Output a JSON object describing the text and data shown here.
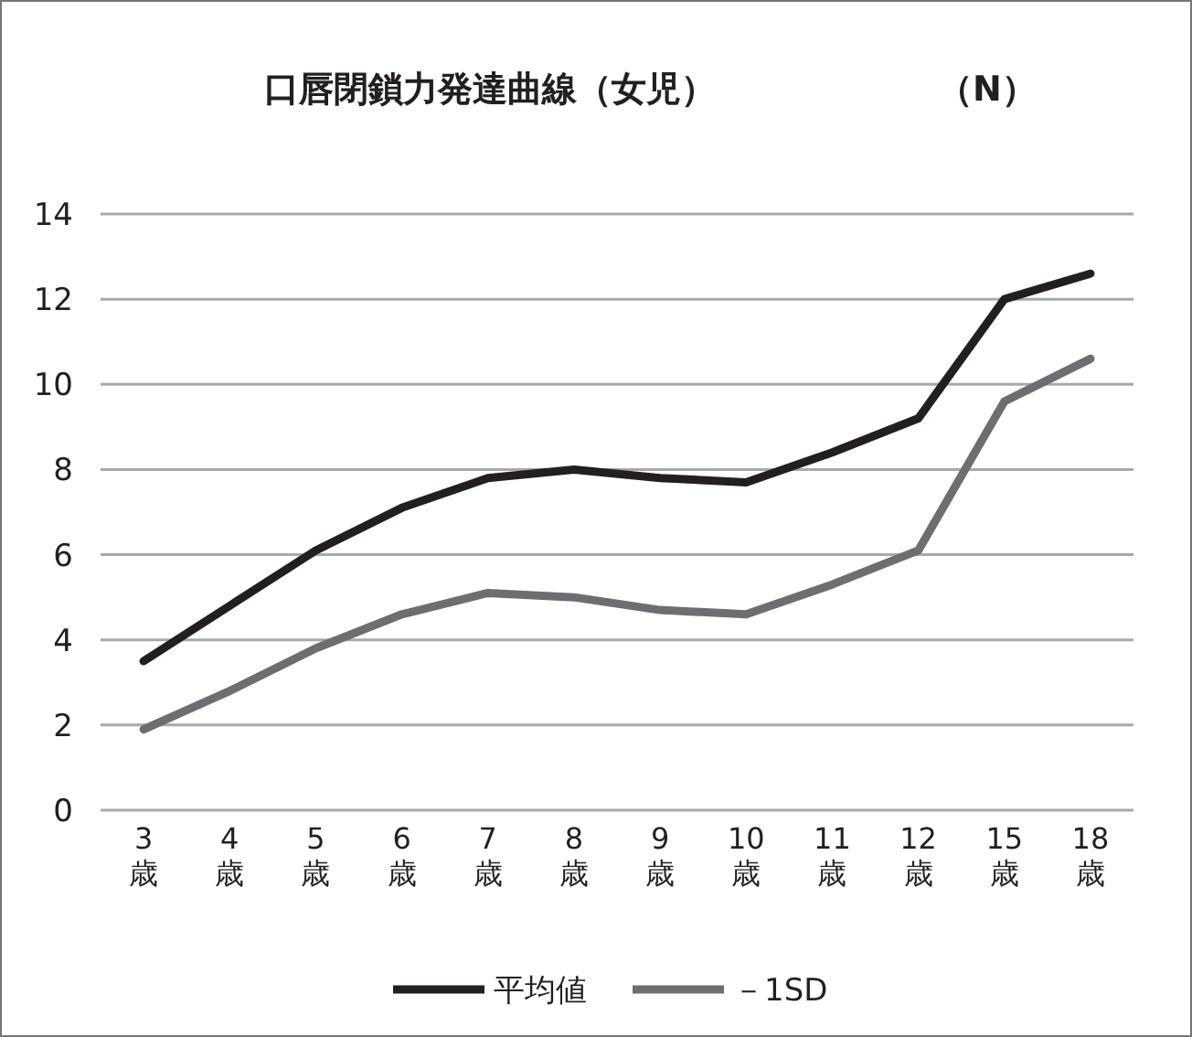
{
  "chart_data": {
    "type": "line",
    "title": "口唇閉鎖力発達曲線（女児）",
    "ylabel": "（N）",
    "categories": [
      "3歳",
      "4歳",
      "5歳",
      "6歳",
      "7歳",
      "8歳",
      "9歳",
      "10歳",
      "11歳",
      "12歳",
      "15歳",
      "18歳"
    ],
    "series": [
      {
        "name": "平均値",
        "color": "#231f20",
        "values": [
          3.5,
          4.8,
          6.1,
          7.1,
          7.8,
          8.0,
          7.8,
          7.7,
          8.4,
          9.2,
          12.0,
          12.6
        ]
      },
      {
        "name": "－1SD",
        "color": "#6d6e71",
        "values": [
          1.9,
          2.8,
          3.8,
          4.6,
          5.1,
          5.0,
          4.7,
          4.6,
          5.3,
          6.1,
          9.6,
          10.6
        ]
      }
    ],
    "ylim": [
      0,
      14
    ],
    "yticks": [
      0,
      2,
      4,
      6,
      8,
      10,
      12,
      14
    ],
    "grid": "y",
    "legend": "bottom",
    "marker": "none",
    "line_style": "solid"
  }
}
